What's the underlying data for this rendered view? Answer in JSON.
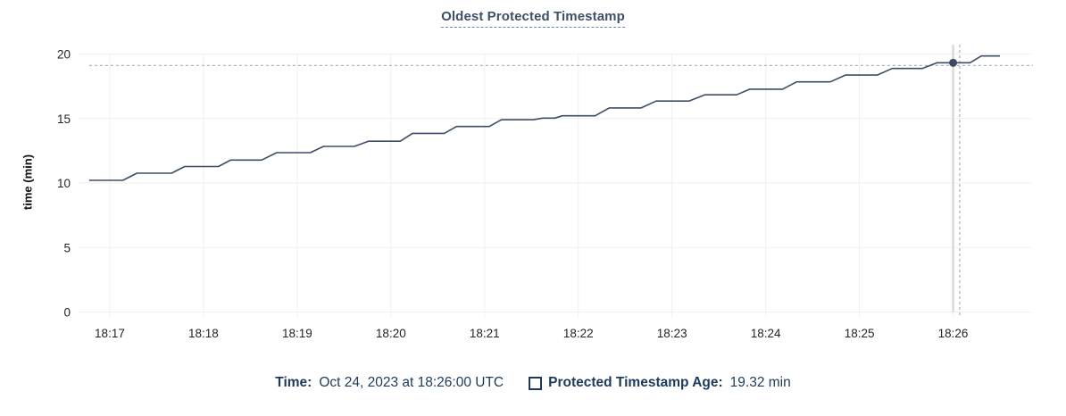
{
  "title": "Oldest Protected Timestamp",
  "footer": {
    "time_label": "Time:",
    "time_value": "Oct 24, 2023 at 18:26:00 UTC",
    "series_label": "Protected Timestamp Age:",
    "series_value": "19.32 min"
  },
  "chart_data": {
    "type": "line",
    "title": "Oldest Protected Timestamp",
    "xlabel": "",
    "ylabel": "time (min)",
    "ylim": [
      0,
      20
    ],
    "y_ticks": [
      0,
      5,
      10,
      15,
      20
    ],
    "xlim_minutes": [
      16.667,
      26.833
    ],
    "x_ticks": [
      {
        "minute": 17,
        "label": "18:17"
      },
      {
        "minute": 18,
        "label": "18:18"
      },
      {
        "minute": 19,
        "label": "18:19"
      },
      {
        "minute": 20,
        "label": "18:20"
      },
      {
        "minute": 21,
        "label": "18:21"
      },
      {
        "minute": 22,
        "label": "18:22"
      },
      {
        "minute": 23,
        "label": "18:23"
      },
      {
        "minute": 24,
        "label": "18:24"
      },
      {
        "minute": 25,
        "label": "18:25"
      },
      {
        "minute": 26,
        "label": "18:26"
      }
    ],
    "grid": true,
    "legend_position": "bottom-center",
    "series": [
      {
        "name": "Protected Timestamp Age",
        "unit": "min",
        "points_minute_value": [
          [
            16.78,
            10.21
          ],
          [
            17.14,
            10.21
          ],
          [
            17.29,
            10.76
          ],
          [
            17.66,
            10.76
          ],
          [
            17.8,
            11.28
          ],
          [
            18.16,
            11.28
          ],
          [
            18.29,
            11.78
          ],
          [
            18.62,
            11.78
          ],
          [
            18.78,
            12.35
          ],
          [
            19.14,
            12.35
          ],
          [
            19.28,
            12.84
          ],
          [
            19.61,
            12.84
          ],
          [
            19.76,
            13.24
          ],
          [
            20.1,
            13.24
          ],
          [
            20.23,
            13.85
          ],
          [
            20.57,
            13.85
          ],
          [
            20.7,
            14.38
          ],
          [
            21.05,
            14.38
          ],
          [
            21.18,
            14.91
          ],
          [
            21.52,
            14.91
          ],
          [
            21.62,
            15.03
          ],
          [
            21.75,
            15.03
          ],
          [
            21.83,
            15.21
          ],
          [
            22.18,
            15.21
          ],
          [
            22.33,
            15.82
          ],
          [
            22.67,
            15.82
          ],
          [
            22.83,
            16.35
          ],
          [
            23.18,
            16.35
          ],
          [
            23.35,
            16.84
          ],
          [
            23.69,
            16.84
          ],
          [
            23.83,
            17.27
          ],
          [
            24.18,
            17.27
          ],
          [
            24.33,
            17.84
          ],
          [
            24.69,
            17.84
          ],
          [
            24.85,
            18.37
          ],
          [
            25.19,
            18.37
          ],
          [
            25.35,
            18.88
          ],
          [
            25.67,
            18.88
          ],
          [
            25.83,
            19.32
          ],
          [
            26.18,
            19.32
          ],
          [
            26.3,
            19.85
          ],
          [
            26.5,
            19.85
          ]
        ]
      }
    ],
    "hover": {
      "time_minute": 26.0,
      "value": 19.32,
      "crosshair_x_minute": 26.07,
      "crosshair_y_value": 19.11
    },
    "colors": {
      "line": "#3e4d66",
      "dot": "#394a63",
      "grid": "#efefef",
      "crosshair": "#a3b5c4",
      "hover_track": "#d9d9d9",
      "tick_text": "#242424",
      "title_text": "#3f5068",
      "footer_text": "#1b3a5c"
    }
  }
}
